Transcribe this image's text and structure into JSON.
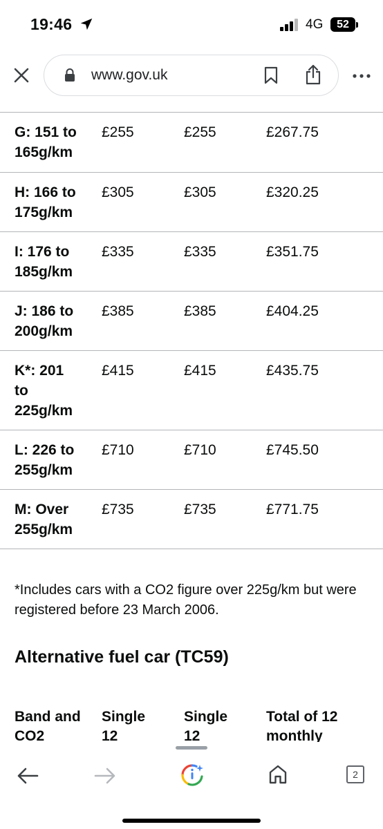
{
  "status_bar": {
    "time": "19:46",
    "network": "4G",
    "battery": "52"
  },
  "address_bar": {
    "url": "www.gov.uk"
  },
  "table": {
    "rows": [
      {
        "band": "G: 151 to 165g/km",
        "v1": "£255",
        "v2": "£255",
        "v3": "£267.75"
      },
      {
        "band": "H: 166 to 175g/km",
        "v1": "£305",
        "v2": "£305",
        "v3": "£320.25"
      },
      {
        "band": "I: 176 to 185g/km",
        "v1": "£335",
        "v2": "£335",
        "v3": "£351.75"
      },
      {
        "band": "J: 186 to 200g/km",
        "v1": "£385",
        "v2": "£385",
        "v3": "£404.25"
      },
      {
        "band": "K*: 201 to 225g/km",
        "v1": "£415",
        "v2": "£415",
        "v3": "£435.75"
      },
      {
        "band": "L: 226 to 255g/km",
        "v1": "£710",
        "v2": "£710",
        "v3": "£745.50"
      },
      {
        "band": "M: Over 255g/km",
        "v1": "£735",
        "v2": "£735",
        "v3": "£771.75"
      }
    ]
  },
  "footnote": "*Includes cars with a CO2 figure over 225g/km but were registered before 23 March 2006.",
  "section_heading": "Alternative fuel car (TC59)",
  "next_table_headers": [
    "Band and CO2",
    "Single 12",
    "Single 12",
    "Total of 12 monthly"
  ],
  "toolbar": {
    "tab_count": "2"
  },
  "icons": {
    "location": "location-arrow-icon",
    "close": "close-icon",
    "lock": "lock-icon",
    "bookmark": "bookmark-icon",
    "share": "share-icon",
    "more": "more-options-icon",
    "back": "back-arrow-icon",
    "forward": "forward-arrow-icon",
    "lens": "google-lens-icon",
    "home": "home-icon",
    "tabs": "tab-switcher-icon"
  },
  "colors": {
    "text": "#0b0c0c",
    "divider": "#b1b4b6",
    "toolbar_icon": "#5f6368"
  }
}
